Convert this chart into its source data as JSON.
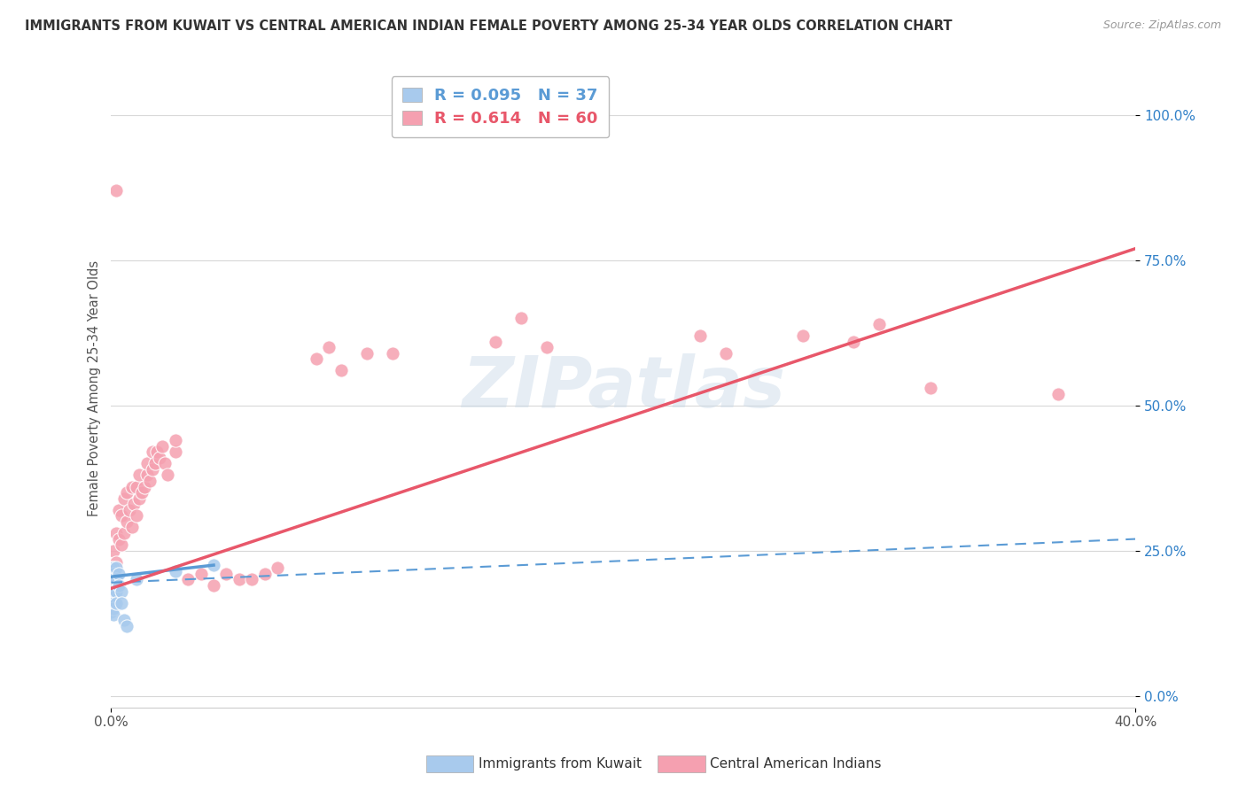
{
  "title": "IMMIGRANTS FROM KUWAIT VS CENTRAL AMERICAN INDIAN FEMALE POVERTY AMONG 25-34 YEAR OLDS CORRELATION CHART",
  "source": "Source: ZipAtlas.com",
  "ylabel": "Female Poverty Among 25-34 Year Olds",
  "xlim": [
    0.0,
    0.4
  ],
  "ylim": [
    -0.02,
    1.08
  ],
  "ytick_vals": [
    0.0,
    0.25,
    0.5,
    0.75,
    1.0
  ],
  "ytick_labels": [
    "0.0%",
    "25.0%",
    "50.0%",
    "75.0%",
    "100.0%"
  ],
  "xtick_vals": [
    0.0,
    0.4
  ],
  "xtick_labels": [
    "0.0%",
    "40.0%"
  ],
  "legend_entries": [
    {
      "label": "R = 0.095   N = 37",
      "color": "#5b9bd5"
    },
    {
      "label": "R = 0.614   N = 60",
      "color": "#e8576a"
    }
  ],
  "watermark": "ZIPatlas",
  "kuwait_color": "#5b9bd5",
  "kuwait_dot_color": "#a8caed",
  "central_american_color": "#e8576a",
  "central_american_dot_color": "#f5a0b0",
  "kuwait_scatter": [
    [
      0.0,
      0.22
    ],
    [
      0.0,
      0.215
    ],
    [
      0.0,
      0.205
    ],
    [
      0.0,
      0.2
    ],
    [
      0.0,
      0.195
    ],
    [
      0.0,
      0.19
    ],
    [
      0.0,
      0.185
    ],
    [
      0.0,
      0.18
    ],
    [
      0.0,
      0.175
    ],
    [
      0.0,
      0.17
    ],
    [
      0.0,
      0.165
    ],
    [
      0.0,
      0.16
    ],
    [
      0.0,
      0.155
    ],
    [
      0.0,
      0.15
    ],
    [
      0.0,
      0.145
    ],
    [
      0.001,
      0.22
    ],
    [
      0.001,
      0.21
    ],
    [
      0.001,
      0.2
    ],
    [
      0.001,
      0.19
    ],
    [
      0.001,
      0.18
    ],
    [
      0.001,
      0.17
    ],
    [
      0.001,
      0.16
    ],
    [
      0.001,
      0.15
    ],
    [
      0.001,
      0.14
    ],
    [
      0.002,
      0.22
    ],
    [
      0.002,
      0.2
    ],
    [
      0.002,
      0.18
    ],
    [
      0.002,
      0.16
    ],
    [
      0.003,
      0.21
    ],
    [
      0.003,
      0.19
    ],
    [
      0.004,
      0.18
    ],
    [
      0.004,
      0.16
    ],
    [
      0.005,
      0.13
    ],
    [
      0.006,
      0.12
    ],
    [
      0.01,
      0.2
    ],
    [
      0.025,
      0.215
    ],
    [
      0.04,
      0.225
    ]
  ],
  "central_american_scatter": [
    [
      0.0,
      0.2
    ],
    [
      0.001,
      0.25
    ],
    [
      0.001,
      0.22
    ],
    [
      0.002,
      0.23
    ],
    [
      0.002,
      0.28
    ],
    [
      0.003,
      0.27
    ],
    [
      0.003,
      0.32
    ],
    [
      0.004,
      0.26
    ],
    [
      0.004,
      0.31
    ],
    [
      0.005,
      0.28
    ],
    [
      0.005,
      0.34
    ],
    [
      0.006,
      0.3
    ],
    [
      0.006,
      0.35
    ],
    [
      0.007,
      0.32
    ],
    [
      0.008,
      0.29
    ],
    [
      0.008,
      0.36
    ],
    [
      0.009,
      0.33
    ],
    [
      0.01,
      0.31
    ],
    [
      0.01,
      0.36
    ],
    [
      0.011,
      0.34
    ],
    [
      0.011,
      0.38
    ],
    [
      0.012,
      0.35
    ],
    [
      0.013,
      0.36
    ],
    [
      0.014,
      0.38
    ],
    [
      0.014,
      0.4
    ],
    [
      0.015,
      0.37
    ],
    [
      0.016,
      0.39
    ],
    [
      0.016,
      0.42
    ],
    [
      0.017,
      0.4
    ],
    [
      0.018,
      0.42
    ],
    [
      0.019,
      0.41
    ],
    [
      0.02,
      0.43
    ],
    [
      0.021,
      0.4
    ],
    [
      0.022,
      0.38
    ],
    [
      0.025,
      0.42
    ],
    [
      0.025,
      0.44
    ],
    [
      0.03,
      0.2
    ],
    [
      0.035,
      0.21
    ],
    [
      0.04,
      0.19
    ],
    [
      0.045,
      0.21
    ],
    [
      0.05,
      0.2
    ],
    [
      0.055,
      0.2
    ],
    [
      0.06,
      0.21
    ],
    [
      0.065,
      0.22
    ],
    [
      0.08,
      0.58
    ],
    [
      0.085,
      0.6
    ],
    [
      0.09,
      0.56
    ],
    [
      0.1,
      0.59
    ],
    [
      0.11,
      0.59
    ],
    [
      0.15,
      0.61
    ],
    [
      0.16,
      0.65
    ],
    [
      0.17,
      0.6
    ],
    [
      0.002,
      0.87
    ],
    [
      0.23,
      0.62
    ],
    [
      0.24,
      0.59
    ],
    [
      0.27,
      0.62
    ],
    [
      0.29,
      0.61
    ],
    [
      0.3,
      0.64
    ],
    [
      0.32,
      0.53
    ],
    [
      0.37,
      0.52
    ]
  ],
  "kuwait_solid_line": {
    "x": [
      0.0,
      0.04
    ],
    "y": [
      0.205,
      0.225
    ]
  },
  "kuwait_dashed_line": {
    "x": [
      0.0,
      0.4
    ],
    "y": [
      0.195,
      0.27
    ]
  },
  "ca_solid_line": {
    "x": [
      0.0,
      0.4
    ],
    "y": [
      0.185,
      0.77
    ]
  },
  "grid_color": "#d8d8d8",
  "bottom_legend": [
    {
      "label": "Immigrants from Kuwait",
      "color": "#a8caed"
    },
    {
      "label": "Central American Indians",
      "color": "#f5a0b0"
    }
  ]
}
